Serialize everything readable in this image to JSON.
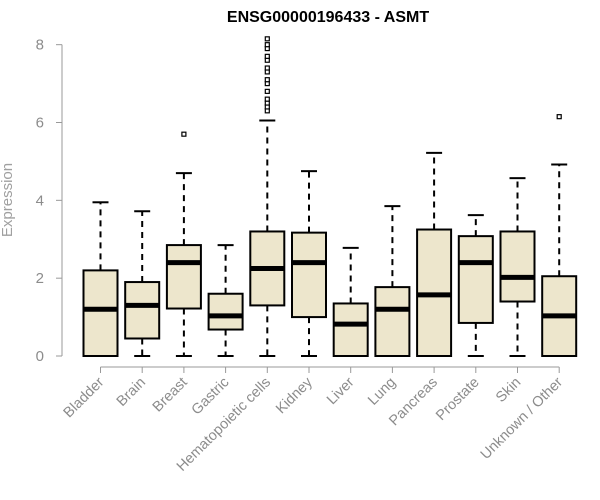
{
  "chart_data": {
    "type": "boxplot",
    "title": "ENSG00000196433 - ASMT",
    "ylabel": "Expression",
    "ylim": [
      0,
      8.3
    ],
    "yticks": [
      0,
      2,
      4,
      6,
      8
    ],
    "grid": false,
    "box_fill": "#ede6cc",
    "box_stroke": "#000000",
    "axis_color": "#999999",
    "categories": [
      "Bladder",
      "Brain",
      "Breast",
      "Gastric",
      "Hematopoietic cells",
      "Kidney",
      "Liver",
      "Lung",
      "Pancreas",
      "Prostate",
      "Skin",
      "Unknown / Other"
    ],
    "boxes": [
      {
        "whisker_low": 0,
        "q1": 0,
        "median": 1.2,
        "q3": 2.2,
        "whisker_high": 3.95,
        "outliers": []
      },
      {
        "whisker_low": 0,
        "q1": 0.45,
        "median": 1.3,
        "q3": 1.9,
        "whisker_high": 3.72,
        "outliers": []
      },
      {
        "whisker_low": 0,
        "q1": 1.22,
        "median": 2.4,
        "q3": 2.85,
        "whisker_high": 4.7,
        "outliers": [
          5.7
        ]
      },
      {
        "whisker_low": 0,
        "q1": 0.68,
        "median": 1.03,
        "q3": 1.6,
        "whisker_high": 2.85,
        "outliers": []
      },
      {
        "whisker_low": 0,
        "q1": 1.3,
        "median": 2.25,
        "q3": 3.2,
        "whisker_high": 6.05,
        "outliers": [
          6.3,
          6.4,
          6.5,
          6.6,
          6.8,
          7.0,
          7.1,
          7.3,
          7.4,
          7.6,
          7.7,
          7.9,
          8.0,
          8.15
        ]
      },
      {
        "whisker_low": 0,
        "q1": 1.0,
        "median": 2.4,
        "q3": 3.17,
        "whisker_high": 4.75,
        "outliers": []
      },
      {
        "whisker_low": 0,
        "q1": 0,
        "median": 0.82,
        "q3": 1.35,
        "whisker_high": 2.78,
        "outliers": []
      },
      {
        "whisker_low": 0,
        "q1": 0,
        "median": 1.2,
        "q3": 1.77,
        "whisker_high": 3.85,
        "outliers": []
      },
      {
        "whisker_low": 0,
        "q1": 0,
        "median": 1.57,
        "q3": 3.25,
        "whisker_high": 5.22,
        "outliers": []
      },
      {
        "whisker_low": 0,
        "q1": 0.85,
        "median": 2.4,
        "q3": 3.08,
        "whisker_high": 3.62,
        "outliers": []
      },
      {
        "whisker_low": 0,
        "q1": 1.4,
        "median": 2.02,
        "q3": 3.2,
        "whisker_high": 4.57,
        "outliers": []
      },
      {
        "whisker_low": 0,
        "q1": 0,
        "median": 1.03,
        "q3": 2.05,
        "whisker_high": 4.92,
        "outliers": [
          6.15
        ]
      }
    ]
  }
}
